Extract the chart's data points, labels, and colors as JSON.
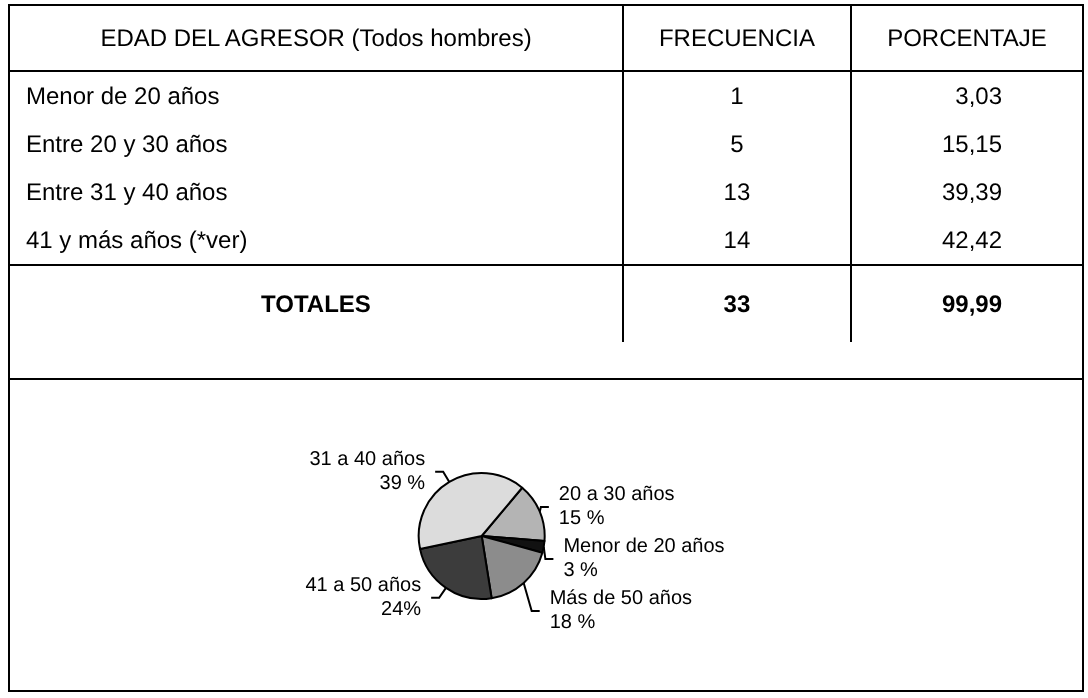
{
  "chart_data": [
    {
      "type": "other",
      "annotations": [
        "EDAD DEL AGRESOR (Todos hombres)",
        "FRECUENCIA",
        "PORCENTAJE",
        "Menor de 20 años",
        "1",
        "3,03",
        "Entre 20 y 30 años",
        "5",
        "15,15",
        "Entre 31 y 40 años",
        "13",
        "39,39",
        "41 y más años (*ver)",
        "14",
        "42,42",
        "TOTALES",
        "33",
        "99,99"
      ]
    },
    {
      "type": "pie",
      "categories": [
        "20 a 30 años",
        "Menor de 20 años",
        "Más de 50 años",
        "41 a 50 años",
        "31 a 40 años"
      ],
      "values": [
        15,
        3,
        18,
        24,
        39
      ],
      "colors": [
        "#b4b4b4",
        "#111111",
        "#8c8c8c",
        "#3c3c3c",
        "#dcdcdc"
      ],
      "value_labels": [
        "15 %",
        "3 %",
        "18 %",
        "24%",
        "39 %"
      ]
    }
  ]
}
